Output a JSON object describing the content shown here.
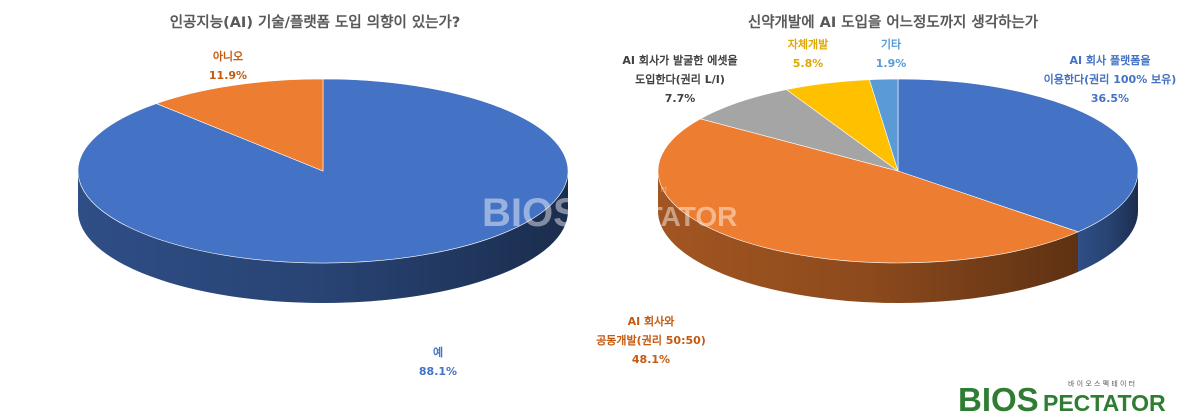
{
  "chart_data": [
    {
      "type": "pie",
      "title": "인공지능(AI) 기술/플랫폼 도입 의향이 있는가?",
      "slices": [
        {
          "label": "예",
          "value": 88.1,
          "value_label": "88.1%",
          "color": "#4472C4"
        },
        {
          "label": "아니오",
          "value": 11.9,
          "value_label": "11.9%",
          "color": "#ED7D31"
        }
      ]
    },
    {
      "type": "pie",
      "title": "신약개발에 AI 도입을 어느정도까지 생각하는가",
      "slices": [
        {
          "label": [
            "AI 회사 플랫폼을",
            "이용한다(권리 100% 보유)"
          ],
          "value": 36.5,
          "value_label": "36.5%",
          "color": "#4472C4"
        },
        {
          "label": [
            "AI 회사와",
            "공동개발(권리 50:50)"
          ],
          "value": 48.1,
          "value_label": "48.1%",
          "color": "#ED7D31"
        },
        {
          "label": [
            "AI 회사가 발굴한 에셋을",
            "도입한다(권리 L/I)"
          ],
          "value": 7.7,
          "value_label": "7.7%",
          "color": "#A5A5A5"
        },
        {
          "label": [
            "자체개발"
          ],
          "value": 5.8,
          "value_label": "5.8%",
          "color": "#FFC000"
        },
        {
          "label": [
            "기타"
          ],
          "value": 1.9,
          "value_label": "1.9%",
          "color": "#5B9BD5"
        }
      ]
    }
  ],
  "watermark": {
    "logo_text_1": "BIOS",
    "logo_text_2": "PECTATOR",
    "logo_sub": "바 이 오 스 펙 테 이 터"
  }
}
